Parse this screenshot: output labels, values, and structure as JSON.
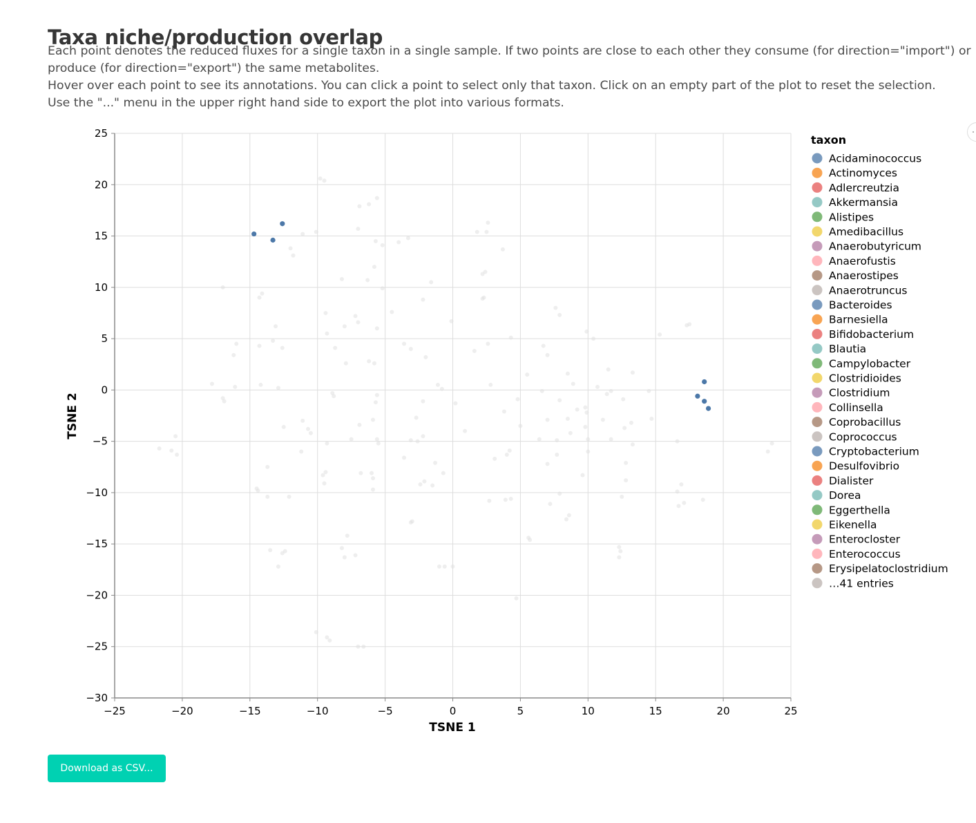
{
  "header": {
    "title": "Taxa niche/production overlap",
    "paragraph_1": "Each point denotes the reduced fluxes for a single taxon in a single sample. If two points are close to each other they consume (for direction=\"import\") or produce (for direction=\"export\") the same metabolites.",
    "paragraph_2": "Hover over each point to see its annotations. You can click a point to select only that taxon. Click on an empty part of the plot to reset the selection.",
    "paragraph_3": "Use the \"...\" menu in the upper right hand side to export the plot into various formats."
  },
  "download_button": {
    "label": "Download as CSV..."
  },
  "menu_button": {
    "icon": "ellipsis-icon"
  },
  "chart_data": {
    "type": "scatter",
    "xlabel": "TSNE 1",
    "ylabel": "TSNE 2",
    "xlim": [
      -25,
      25
    ],
    "ylim": [
      -30,
      25
    ],
    "xticks": [
      -25,
      -20,
      -15,
      -10,
      -5,
      0,
      5,
      10,
      15,
      20,
      25
    ],
    "yticks": [
      25,
      20,
      15,
      10,
      5,
      0,
      -5,
      -10,
      -15,
      -20,
      -25,
      -30
    ],
    "grid": true,
    "legend": {
      "title": "taxon",
      "placement": "right",
      "entries": [
        {
          "name": "Acidaminococcus",
          "color": "#4c78a8"
        },
        {
          "name": "Actinomyces",
          "color": "#f58518"
        },
        {
          "name": "Adlercreutzia",
          "color": "#e45756"
        },
        {
          "name": "Akkermansia",
          "color": "#72b7b2"
        },
        {
          "name": "Alistipes",
          "color": "#54a24b"
        },
        {
          "name": "Amedibacillus",
          "color": "#eeca3b"
        },
        {
          "name": "Anaerobutyricum",
          "color": "#b279a2"
        },
        {
          "name": "Anaerofustis",
          "color": "#ff9da6"
        },
        {
          "name": "Anaerostipes",
          "color": "#9d755d"
        },
        {
          "name": "Anaerotruncus",
          "color": "#bab0ac"
        },
        {
          "name": "Bacteroides",
          "color": "#4c78a8"
        },
        {
          "name": "Barnesiella",
          "color": "#f58518"
        },
        {
          "name": "Bifidobacterium",
          "color": "#e45756"
        },
        {
          "name": "Blautia",
          "color": "#72b7b2"
        },
        {
          "name": "Campylobacter",
          "color": "#54a24b"
        },
        {
          "name": "Clostridioides",
          "color": "#eeca3b"
        },
        {
          "name": "Clostridium",
          "color": "#b279a2"
        },
        {
          "name": "Collinsella",
          "color": "#ff9da6"
        },
        {
          "name": "Coprobacillus",
          "color": "#9d755d"
        },
        {
          "name": "Coprococcus",
          "color": "#bab0ac"
        },
        {
          "name": "Cryptobacterium",
          "color": "#4c78a8"
        },
        {
          "name": "Desulfovibrio",
          "color": "#f58518"
        },
        {
          "name": "Dialister",
          "color": "#e45756"
        },
        {
          "name": "Dorea",
          "color": "#72b7b2"
        },
        {
          "name": "Eggerthella",
          "color": "#54a24b"
        },
        {
          "name": "Eikenella",
          "color": "#eeca3b"
        },
        {
          "name": "Enterocloster",
          "color": "#b279a2"
        },
        {
          "name": "Enterococcus",
          "color": "#ff9da6"
        },
        {
          "name": "Erysipelatoclostridium",
          "color": "#9d755d"
        },
        {
          "name": "…41 entries",
          "color": "#bab0ac"
        }
      ]
    },
    "highlight_color": "#4c78a8",
    "faded_color": "#e0e0e0",
    "series": [
      {
        "highlighted": true,
        "points": [
          [
            -14.7,
            15.2
          ],
          [
            -13.3,
            14.6
          ],
          [
            -12.6,
            16.2
          ],
          [
            18.6,
            0.8
          ],
          [
            18.1,
            -0.6
          ],
          [
            18.6,
            -1.1
          ],
          [
            18.9,
            -1.8
          ]
        ]
      },
      {
        "highlighted": false,
        "points": [
          [
            -9.8,
            20.6
          ],
          [
            -9.5,
            20.4
          ],
          [
            -6.9,
            17.9
          ],
          [
            -6.2,
            18.1
          ],
          [
            -5.6,
            18.7
          ],
          [
            -11.1,
            15.2
          ],
          [
            -10.1,
            15.4
          ],
          [
            -7.0,
            15.7
          ],
          [
            -5.7,
            14.5
          ],
          [
            -5.2,
            14.1
          ],
          [
            -4.0,
            14.4
          ],
          [
            -3.3,
            14.8
          ],
          [
            -12.0,
            13.8
          ],
          [
            -11.8,
            13.1
          ],
          [
            1.8,
            15.4
          ],
          [
            2.5,
            15.4
          ],
          [
            2.6,
            16.3
          ],
          [
            3.7,
            13.7
          ],
          [
            -17.0,
            10.0
          ],
          [
            -14.1,
            9.4
          ],
          [
            -14.3,
            9.0
          ],
          [
            -8.2,
            10.8
          ],
          [
            -6.3,
            10.7
          ],
          [
            -5.8,
            12.0
          ],
          [
            -5.2,
            9.9
          ],
          [
            -1.6,
            10.5
          ],
          [
            2.2,
            11.3
          ],
          [
            2.4,
            11.5
          ],
          [
            -13.1,
            6.2
          ],
          [
            -9.4,
            7.5
          ],
          [
            -7.2,
            7.2
          ],
          [
            -7.0,
            6.6
          ],
          [
            -8.0,
            6.2
          ],
          [
            -4.5,
            7.6
          ],
          [
            -2.2,
            8.8
          ],
          [
            2.2,
            8.9
          ],
          [
            2.3,
            9.0
          ],
          [
            7.6,
            8.0
          ],
          [
            7.9,
            7.3
          ],
          [
            -0.1,
            6.7
          ],
          [
            -16.0,
            4.5
          ],
          [
            -16.2,
            3.4
          ],
          [
            -14.3,
            4.3
          ],
          [
            -13.3,
            4.8
          ],
          [
            -12.6,
            4.1
          ],
          [
            -9.3,
            5.5
          ],
          [
            -8.7,
            4.1
          ],
          [
            -7.9,
            2.6
          ],
          [
            -6.2,
            2.8
          ],
          [
            -5.8,
            2.6
          ],
          [
            -5.6,
            6.0
          ],
          [
            -3.6,
            4.5
          ],
          [
            -3.1,
            4.0
          ],
          [
            -2.0,
            3.2
          ],
          [
            1.6,
            3.8
          ],
          [
            2.6,
            4.5
          ],
          [
            4.3,
            5.1
          ],
          [
            6.7,
            4.3
          ],
          [
            7.0,
            3.4
          ],
          [
            9.9,
            5.7
          ],
          [
            10.4,
            5.0
          ],
          [
            15.3,
            5.4
          ],
          [
            17.3,
            6.3
          ],
          [
            17.5,
            6.4
          ],
          [
            -17.8,
            0.6
          ],
          [
            -17.0,
            -0.8
          ],
          [
            -16.9,
            -1.1
          ],
          [
            -16.1,
            0.3
          ],
          [
            -14.2,
            0.5
          ],
          [
            -12.9,
            0.2
          ],
          [
            -8.9,
            -0.3
          ],
          [
            -8.8,
            -0.6
          ],
          [
            -5.6,
            -0.5
          ],
          [
            -5.7,
            -1.2
          ],
          [
            -2.2,
            -1.1
          ],
          [
            -1.1,
            0.5
          ],
          [
            -0.8,
            0.1
          ],
          [
            0.2,
            -1.3
          ],
          [
            2.8,
            0.5
          ],
          [
            4.8,
            -0.9
          ],
          [
            5.5,
            1.5
          ],
          [
            6.6,
            -0.1
          ],
          [
            8.5,
            1.6
          ],
          [
            8.9,
            0.6
          ],
          [
            10.7,
            0.3
          ],
          [
            11.4,
            -0.4
          ],
          [
            11.7,
            -0.1
          ],
          [
            11.5,
            2.0
          ],
          [
            13.3,
            1.7
          ],
          [
            12.6,
            -0.9
          ],
          [
            14.5,
            -0.1
          ],
          [
            3.8,
            -2.1
          ],
          [
            7.0,
            -2.9
          ],
          [
            7.9,
            -1.0
          ],
          [
            8.5,
            -2.8
          ],
          [
            9.2,
            -1.9
          ],
          [
            9.8,
            -1.7
          ],
          [
            9.9,
            -2.2
          ],
          [
            11.1,
            -2.9
          ],
          [
            -12.5,
            -3.6
          ],
          [
            -11.1,
            -3.0
          ],
          [
            -10.7,
            -3.8
          ],
          [
            -10.5,
            -4.2
          ],
          [
            -9.3,
            -5.2
          ],
          [
            -7.5,
            -4.8
          ],
          [
            -6.9,
            -3.4
          ],
          [
            -5.9,
            -2.9
          ],
          [
            -5.6,
            -4.8
          ],
          [
            -5.5,
            -5.2
          ],
          [
            -3.1,
            -4.9
          ],
          [
            -2.7,
            -2.7
          ],
          [
            -2.6,
            -5.0
          ],
          [
            -2.2,
            -4.5
          ],
          [
            0.9,
            -4.0
          ],
          [
            5.0,
            -3.5
          ],
          [
            6.4,
            -4.8
          ],
          [
            7.7,
            -4.9
          ],
          [
            8.7,
            -4.2
          ],
          [
            9.8,
            -3.6
          ],
          [
            10.0,
            -4.8
          ],
          [
            11.7,
            -4.8
          ],
          [
            12.7,
            -3.7
          ],
          [
            13.2,
            -3.2
          ],
          [
            14.7,
            -2.8
          ],
          [
            -21.7,
            -5.7
          ],
          [
            -20.8,
            -5.9
          ],
          [
            -20.5,
            -4.5
          ],
          [
            -20.4,
            -6.3
          ],
          [
            -11.2,
            -6.0
          ],
          [
            -13.7,
            -7.5
          ],
          [
            -6.0,
            -8.1
          ],
          [
            -5.9,
            -8.6
          ],
          [
            -6.8,
            -8.1
          ],
          [
            -9.6,
            -8.3
          ],
          [
            -9.4,
            -8.0
          ],
          [
            -9.5,
            -9.1
          ],
          [
            -3.6,
            -6.6
          ],
          [
            -2.4,
            -9.2
          ],
          [
            -2.1,
            -8.9
          ],
          [
            -1.3,
            -7.1
          ],
          [
            -1.5,
            -9.3
          ],
          [
            -0.7,
            -8.1
          ],
          [
            3.1,
            -6.7
          ],
          [
            4.0,
            -6.3
          ],
          [
            4.2,
            -5.9
          ],
          [
            7.0,
            -7.2
          ],
          [
            7.7,
            -6.3
          ],
          [
            10.0,
            -6.0
          ],
          [
            12.8,
            -7.1
          ],
          [
            13.3,
            -5.3
          ],
          [
            -14.4,
            -9.8
          ],
          [
            -14.5,
            -9.6
          ],
          [
            -13.7,
            -10.4
          ],
          [
            -12.1,
            -10.4
          ],
          [
            -5.9,
            -9.7
          ],
          [
            2.7,
            -10.8
          ],
          [
            3.9,
            -10.7
          ],
          [
            4.3,
            -10.6
          ],
          [
            7.2,
            -11.1
          ],
          [
            7.9,
            -10.1
          ],
          [
            9.6,
            -8.3
          ],
          [
            12.5,
            -10.4
          ],
          [
            12.8,
            -8.8
          ],
          [
            16.6,
            -9.9
          ],
          [
            16.9,
            -9.2
          ],
          [
            16.7,
            -11.3
          ],
          [
            17.1,
            -11.0
          ],
          [
            18.5,
            -10.7
          ],
          [
            8.6,
            -12.2
          ],
          [
            8.4,
            -12.6
          ],
          [
            -3.1,
            -12.9
          ],
          [
            -3.0,
            -12.8
          ],
          [
            -7.8,
            -14.2
          ],
          [
            -8.2,
            -15.4
          ],
          [
            -8.0,
            -16.3
          ],
          [
            -7.2,
            -16.1
          ],
          [
            -13.5,
            -15.6
          ],
          [
            -12.6,
            -15.9
          ],
          [
            -12.4,
            -15.7
          ],
          [
            -12.9,
            -17.2
          ],
          [
            5.6,
            -14.4
          ],
          [
            5.7,
            -14.6
          ],
          [
            12.3,
            -15.3
          ],
          [
            12.4,
            -15.7
          ],
          [
            12.3,
            -16.3
          ],
          [
            -1.0,
            -17.2
          ],
          [
            -0.6,
            -17.2
          ],
          [
            0.0,
            -17.2
          ],
          [
            4.7,
            -20.3
          ],
          [
            -10.1,
            -23.6
          ],
          [
            -9.3,
            -24.1
          ],
          [
            -9.1,
            -24.4
          ],
          [
            -7.0,
            -25.0
          ],
          [
            -6.6,
            -25.0
          ],
          [
            23.3,
            -6.0
          ],
          [
            23.6,
            -5.2
          ],
          [
            16.6,
            -5.0
          ]
        ]
      }
    ]
  }
}
